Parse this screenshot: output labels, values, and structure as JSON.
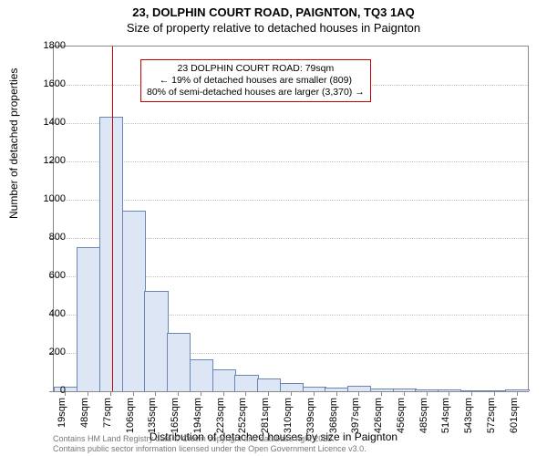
{
  "title_line1": "23, DOLPHIN COURT ROAD, PAIGNTON, TQ3 1AQ",
  "title_line2": "Size of property relative to detached houses in Paignton",
  "ylabel": "Number of detached properties",
  "xlabel": "Distribution of detached houses by size in Paignton",
  "footer_line1": "Contains HM Land Registry data © Crown copyright and database right 2025.",
  "footer_line2": "Contains public sector information licensed under the Open Government Licence v3.0.",
  "chart": {
    "type": "histogram",
    "ylim": [
      0,
      1800
    ],
    "ytick_step": 200,
    "bar_fill": "#dde6f4",
    "bar_stroke": "#6b86b6",
    "grid_color": "#c0c0c0",
    "background_color": "#ffffff",
    "ref_line_color": "#cc0000",
    "ref_line_x_index": 2.1,
    "x_labels": [
      "19sqm",
      "48sqm",
      "77sqm",
      "106sqm",
      "135sqm",
      "165sqm",
      "194sqm",
      "223sqm",
      "252sqm",
      "281sqm",
      "310sqm",
      "339sqm",
      "368sqm",
      "397sqm",
      "426sqm",
      "456sqm",
      "485sqm",
      "514sqm",
      "543sqm",
      "572sqm",
      "601sqm"
    ],
    "values": [
      20,
      750,
      1430,
      940,
      520,
      300,
      160,
      110,
      80,
      60,
      40,
      20,
      15,
      25,
      10,
      8,
      5,
      5,
      0,
      0,
      5
    ]
  },
  "annotation": {
    "line1": "23 DOLPHIN COURT ROAD: 79sqm",
    "line2": "← 19% of detached houses are smaller (809)",
    "line3": "80% of semi-detached houses are larger (3,370) →",
    "border_color": "#cc0000"
  }
}
